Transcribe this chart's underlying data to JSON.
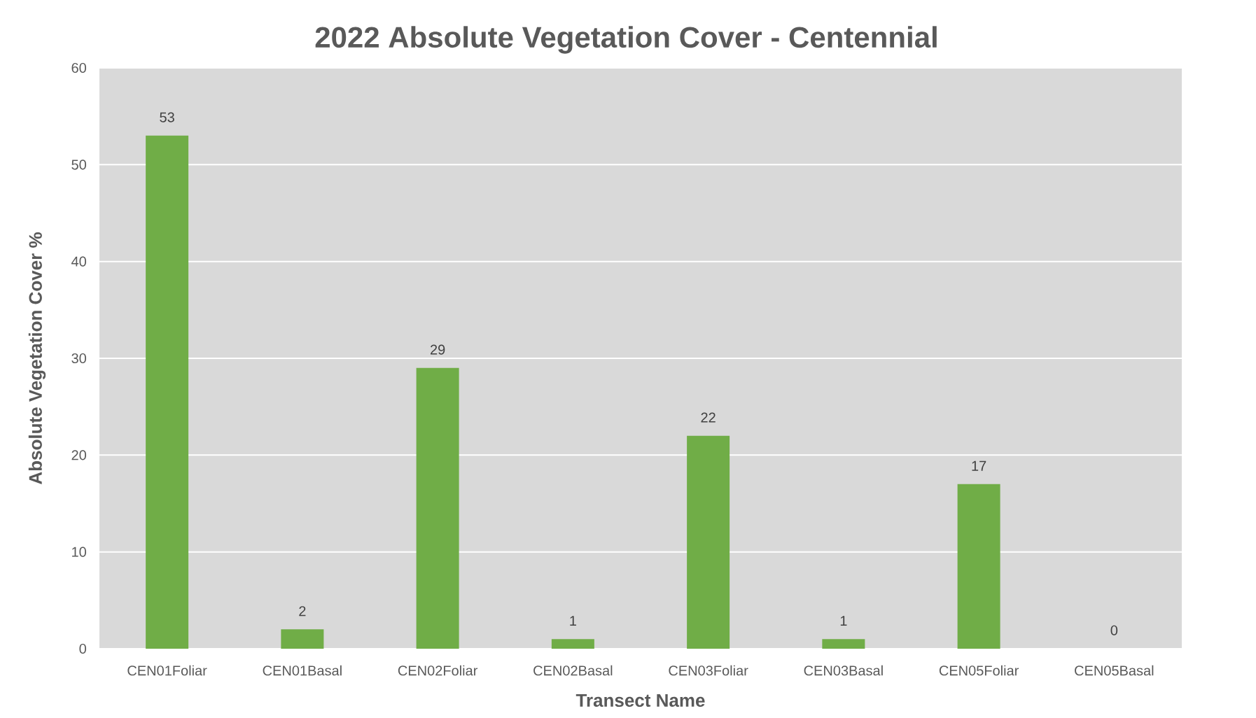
{
  "chart_data": {
    "type": "bar",
    "title": "2022 Absolute Vegetation Cover - Centennial",
    "xlabel": "Transect Name",
    "ylabel": "Absolute Vegetation Cover %",
    "categories": [
      "CEN01Foliar",
      "CEN01Basal",
      "CEN02Foliar",
      "CEN02Basal",
      "CEN03Foliar",
      "CEN03Basal",
      "CEN05Foliar",
      "CEN05Basal"
    ],
    "values": [
      53,
      2,
      29,
      1,
      22,
      1,
      17,
      0
    ],
    "color": "#70ad47",
    "ylim": [
      0,
      60
    ],
    "yticks": [
      0,
      10,
      20,
      30,
      40,
      50,
      60
    ],
    "grid": "y",
    "data_labels": true
  }
}
